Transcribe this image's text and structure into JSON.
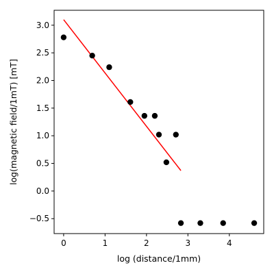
{
  "chart_data": {
    "type": "scatter",
    "title": "",
    "xlabel": "log (distance/1mm)",
    "ylabel": "log(magnetic field/1mT) [mT]",
    "xlim": [
      -0.23,
      4.83
    ],
    "ylim": [
      -0.77,
      3.27
    ],
    "x_ticks": [
      0,
      1,
      2,
      3,
      4
    ],
    "x_tick_labels": [
      "0",
      "1",
      "2",
      "3",
      "4"
    ],
    "y_ticks": [
      -0.5,
      0.0,
      0.5,
      1.0,
      1.5,
      2.0,
      2.5,
      3.0
    ],
    "y_tick_labels": [
      "−0.5",
      "0.0",
      "0.5",
      "1.0",
      "1.5",
      "2.0",
      "2.5",
      "3.0"
    ],
    "grid": false,
    "series": [
      {
        "kind": "scatter",
        "color": "#000000",
        "points": [
          {
            "x": 0.0,
            "y": 2.78
          },
          {
            "x": 0.69,
            "y": 2.45
          },
          {
            "x": 1.1,
            "y": 2.24
          },
          {
            "x": 1.61,
            "y": 1.61
          },
          {
            "x": 1.95,
            "y": 1.36
          },
          {
            "x": 2.2,
            "y": 1.36
          },
          {
            "x": 2.3,
            "y": 1.02
          },
          {
            "x": 2.48,
            "y": 0.52
          },
          {
            "x": 2.71,
            "y": 1.02
          },
          {
            "x": 2.83,
            "y": -0.58
          },
          {
            "x": 3.3,
            "y": -0.58
          },
          {
            "x": 3.85,
            "y": -0.58
          },
          {
            "x": 4.6,
            "y": -0.58
          }
        ]
      },
      {
        "kind": "line",
        "color": "#ff0000",
        "points": [
          {
            "x": 0.0,
            "y": 3.1
          },
          {
            "x": 2.83,
            "y": 0.37
          }
        ]
      }
    ]
  }
}
